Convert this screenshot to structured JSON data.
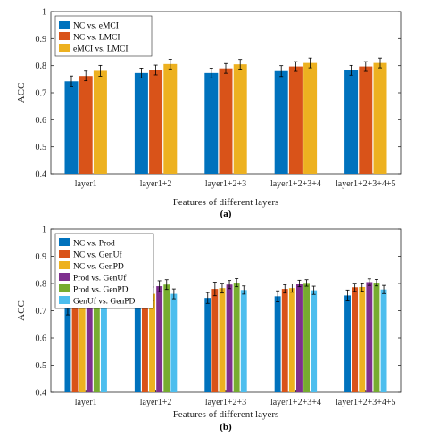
{
  "colors": {
    "blue": "#0072BD",
    "orange": "#D95319",
    "yellow": "#EDB120",
    "purple": "#7E2F8E",
    "green": "#77AC30",
    "cyan": "#4DBEEE"
  },
  "chart_data": [
    {
      "type": "bar",
      "panel_label": "(a)",
      "xlabel": "Features of different layers",
      "ylabel": "ACC",
      "ylim": [
        0.4,
        1
      ],
      "yticks": [
        "0.4",
        "0.5",
        "0.6",
        "0.7",
        "0.8",
        "0.9",
        "1"
      ],
      "grid": false,
      "legend_position": "top-left",
      "categories": [
        "layer1",
        "layer1+2",
        "layer1+2+3",
        "layer1+2+3+4",
        "layer1+2+3+4+5"
      ],
      "series": [
        {
          "name": "NC vs. eMCI",
          "color": "#0072BD",
          "values": [
            0.742,
            0.773,
            0.773,
            0.78,
            0.783
          ],
          "errors": [
            0.02,
            0.018,
            0.018,
            0.02,
            0.018
          ]
        },
        {
          "name": "NC vs. LMCI",
          "color": "#D95319",
          "values": [
            0.762,
            0.784,
            0.79,
            0.797,
            0.797
          ],
          "errors": [
            0.018,
            0.018,
            0.018,
            0.018,
            0.018
          ]
        },
        {
          "name": "eMCI vs. LMCI",
          "color": "#EDB120",
          "values": [
            0.781,
            0.806,
            0.805,
            0.81,
            0.81
          ],
          "errors": [
            0.02,
            0.018,
            0.018,
            0.018,
            0.018
          ]
        }
      ]
    },
    {
      "type": "bar",
      "panel_label": "(b)",
      "xlabel": "Features of different layers",
      "ylabel": "ACC",
      "ylim": [
        0.4,
        1
      ],
      "yticks": [
        "0.4",
        "0.5",
        "0.6",
        "0.7",
        "0.8",
        "0.9",
        "1"
      ],
      "grid": false,
      "legend_position": "top-left",
      "categories": [
        "layer1",
        "layer1+2",
        "layer1+2+3",
        "layer1+2+3+4",
        "layer1+2+3+4+5"
      ],
      "series": [
        {
          "name": "NC vs. Prod",
          "color": "#0072BD",
          "values": [
            0.71,
            0.737,
            0.747,
            0.753,
            0.756
          ],
          "errors": [
            0.025,
            0.02,
            0.02,
            0.02,
            0.02
          ]
        },
        {
          "name": "NC vs. GenUf",
          "color": "#D95319",
          "values": [
            0.741,
            0.775,
            0.78,
            0.78,
            0.786
          ],
          "errors": [
            0.02,
            0.03,
            0.025,
            0.015,
            0.015
          ]
        },
        {
          "name": "NC vs. GenPD",
          "color": "#EDB120",
          "values": [
            0.743,
            0.762,
            0.783,
            0.783,
            0.787
          ],
          "errors": [
            0.025,
            0.025,
            0.018,
            0.015,
            0.015
          ]
        },
        {
          "name": "Prod vs. GenUf",
          "color": "#7E2F8E",
          "values": [
            0.753,
            0.79,
            0.796,
            0.8,
            0.805
          ],
          "errors": [
            0.02,
            0.02,
            0.015,
            0.012,
            0.012
          ]
        },
        {
          "name": "Prod vs. GenPD",
          "color": "#77AC30",
          "values": [
            0.766,
            0.796,
            0.803,
            0.802,
            0.803
          ],
          "errors": [
            0.02,
            0.018,
            0.015,
            0.012,
            0.012
          ]
        },
        {
          "name": "GenUf vs. GenPD",
          "color": "#4DBEEE",
          "values": [
            0.731,
            0.762,
            0.776,
            0.775,
            0.778
          ],
          "errors": [
            0.02,
            0.018,
            0.015,
            0.015,
            0.015
          ]
        }
      ]
    }
  ]
}
